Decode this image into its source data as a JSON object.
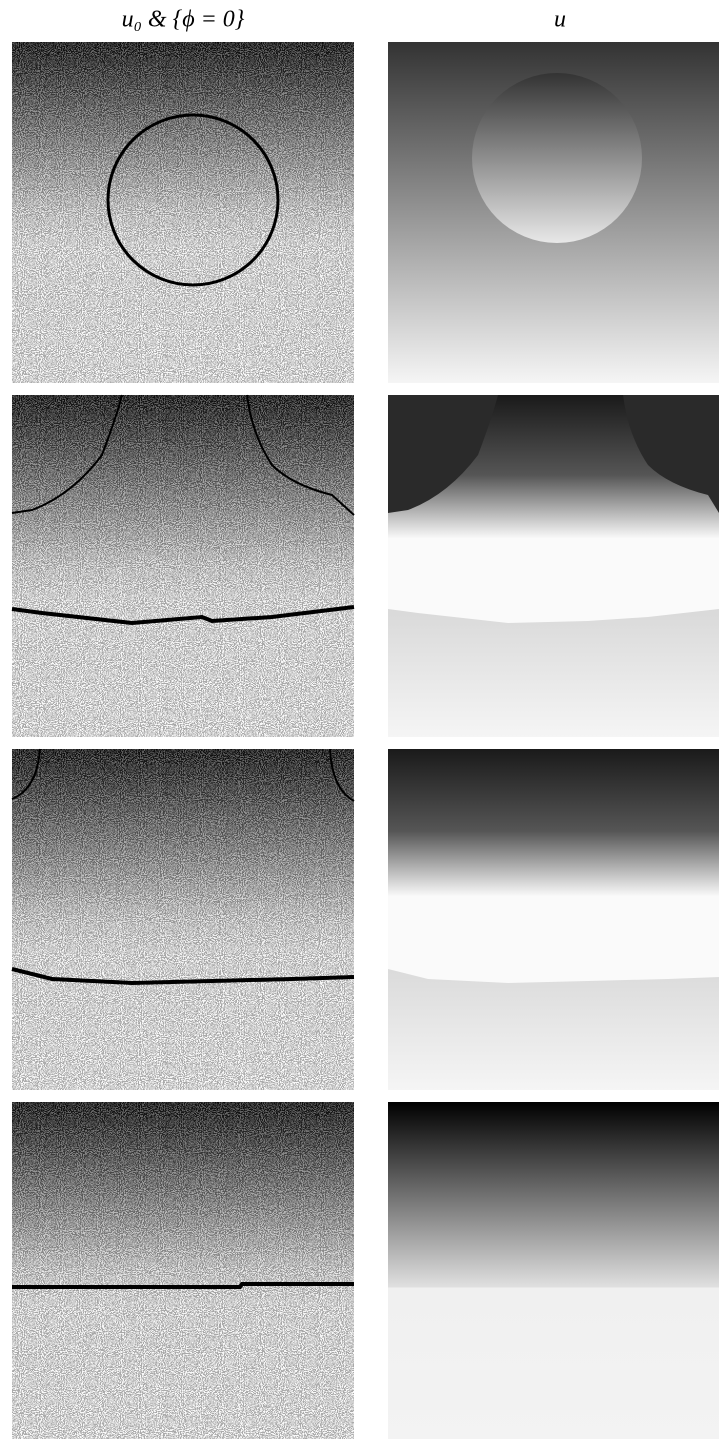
{
  "figure": {
    "headers": [
      "u₀ & {ϕ = 0}",
      "u"
    ]
  }
}
